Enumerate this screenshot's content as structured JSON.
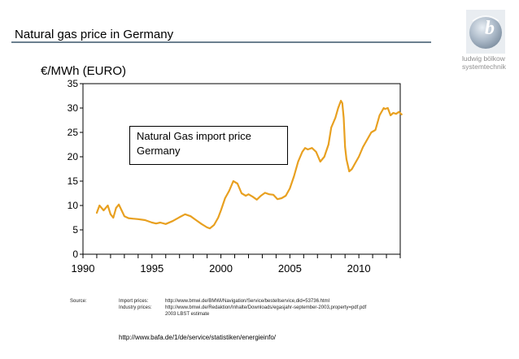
{
  "slide": {
    "title": "Natural gas price in Germany",
    "unit_label": "€/MWh (EURO)"
  },
  "logo": {
    "glyph": "b",
    "line1": "ludwig bölkow",
    "line2": "systemtechnik"
  },
  "colors": {
    "line": "#E8A020",
    "title_rule": "#6B7F8F"
  },
  "chart_data": {
    "type": "line",
    "title": "",
    "xlabel": "",
    "ylabel": "€/MWh (EURO)",
    "xlim": [
      1990,
      2013
    ],
    "ylim": [
      0,
      35
    ],
    "x_ticks": [
      1990,
      1995,
      2000,
      2005,
      2010
    ],
    "y_ticks": [
      0,
      5,
      10,
      15,
      20,
      25,
      30,
      35
    ],
    "grid": false,
    "annotation": [
      "Natural Gas import price",
      "Germany"
    ],
    "series": [
      {
        "name": "Natural Gas import price Germany",
        "x": [
          1991.0,
          1991.2,
          1991.5,
          1991.8,
          1992.0,
          1992.2,
          1992.4,
          1992.6,
          1992.8,
          1993.0,
          1993.3,
          1993.6,
          1994.0,
          1994.5,
          1995.0,
          1995.3,
          1995.6,
          1996.0,
          1996.5,
          1997.0,
          1997.4,
          1997.8,
          1998.2,
          1998.6,
          1999.0,
          1999.2,
          1999.5,
          1999.8,
          2000.0,
          2000.3,
          2000.6,
          2000.9,
          2001.2,
          2001.5,
          2001.8,
          2002.0,
          2002.3,
          2002.6,
          2002.9,
          2003.2,
          2003.5,
          2003.8,
          2004.1,
          2004.4,
          2004.7,
          2005.0,
          2005.3,
          2005.6,
          2005.9,
          2006.1,
          2006.3,
          2006.6,
          2006.9,
          2007.2,
          2007.5,
          2007.8,
          2008.0,
          2008.3,
          2008.5,
          2008.7,
          2008.8,
          2008.9,
          2009.0,
          2009.1,
          2009.3,
          2009.5,
          2009.7,
          2010.0,
          2010.3,
          2010.6,
          2010.9,
          2011.2,
          2011.5,
          2011.8,
          2011.9,
          2012.1,
          2012.3,
          2012.5,
          2012.7,
          2012.9,
          2013.1
        ],
        "y": [
          8.5,
          10.0,
          9.0,
          10.0,
          8.2,
          7.5,
          9.5,
          10.2,
          9.0,
          7.8,
          7.4,
          7.3,
          7.2,
          7.0,
          6.5,
          6.3,
          6.5,
          6.2,
          6.8,
          7.6,
          8.2,
          7.8,
          7.0,
          6.2,
          5.5,
          5.3,
          6.0,
          7.5,
          9.0,
          11.5,
          13.0,
          15.0,
          14.5,
          12.5,
          12.0,
          12.3,
          11.8,
          11.2,
          12.0,
          12.6,
          12.3,
          12.2,
          11.3,
          11.5,
          12.0,
          13.5,
          16.0,
          19.0,
          21.0,
          21.8,
          21.5,
          21.8,
          21.0,
          19.0,
          20.0,
          22.5,
          26.0,
          28.0,
          30.0,
          31.5,
          31.0,
          28.0,
          22.0,
          19.5,
          17.0,
          17.5,
          18.5,
          20.0,
          22.0,
          23.5,
          25.0,
          25.5,
          28.5,
          30.0,
          29.8,
          30.0,
          28.5,
          29.0,
          28.8,
          29.2,
          28.7
        ]
      }
    ]
  },
  "sources": {
    "label": "Source:",
    "rows": [
      {
        "kind": "Import prices:",
        "url": "http://www.bmwi.de/BMWi/Navigation/Service/bestellservice,did=53736.html"
      },
      {
        "kind": "Industry prices:",
        "url": "http://www.bmwi.de/Redaktion/Inhalte/Downloads/egasjahr-september-2003,property=pdf.pdf"
      },
      {
        "kind": "",
        "url": "2003 LBST estimate"
      }
    ],
    "footer_url": "http://www.bafa.de/1/de/service/statistiken/energieinfo/"
  }
}
